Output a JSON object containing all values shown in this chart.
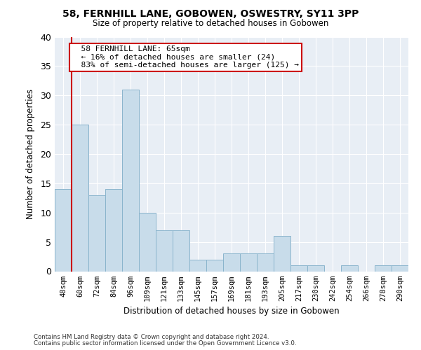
{
  "title_line1": "58, FERNHILL LANE, GOBOWEN, OSWESTRY, SY11 3PP",
  "title_line2": "Size of property relative to detached houses in Gobowen",
  "xlabel": "Distribution of detached houses by size in Gobowen",
  "ylabel": "Number of detached properties",
  "categories": [
    "48sqm",
    "60sqm",
    "72sqm",
    "84sqm",
    "96sqm",
    "109sqm",
    "121sqm",
    "133sqm",
    "145sqm",
    "157sqm",
    "169sqm",
    "181sqm",
    "193sqm",
    "205sqm",
    "217sqm",
    "230sqm",
    "242sqm",
    "254sqm",
    "266sqm",
    "278sqm",
    "290sqm"
  ],
  "values": [
    14,
    25,
    13,
    14,
    31,
    10,
    7,
    7,
    2,
    2,
    3,
    3,
    3,
    6,
    1,
    1,
    0,
    1,
    0,
    1,
    1
  ],
  "bar_color": "#c8dcea",
  "bar_edge_color": "#8ab4cc",
  "annotation_text": "  58 FERNHILL LANE: 65sqm\n  ← 16% of detached houses are smaller (24)\n  83% of semi-detached houses are larger (125) →",
  "annotation_box_color": "white",
  "annotation_box_edge_color": "#cc0000",
  "vline_color": "#cc0000",
  "vline_x_index": 1,
  "ylim": [
    0,
    40
  ],
  "yticks": [
    0,
    5,
    10,
    15,
    20,
    25,
    30,
    35,
    40
  ],
  "footnote_line1": "Contains HM Land Registry data © Crown copyright and database right 2024.",
  "footnote_line2": "Contains public sector information licensed under the Open Government Licence v3.0.",
  "bg_color": "#ffffff",
  "plot_bg_color": "#e8eef5"
}
